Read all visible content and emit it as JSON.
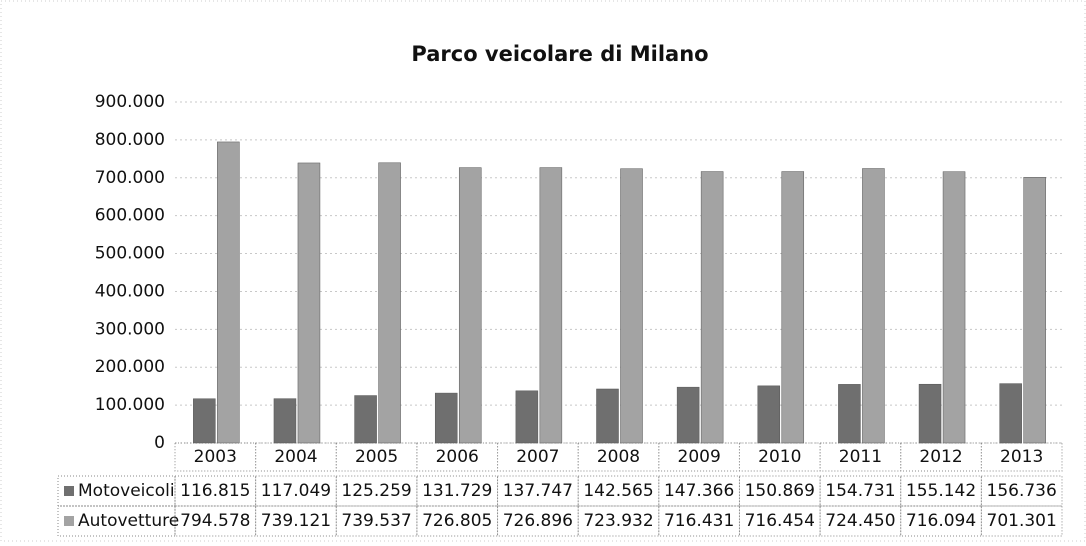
{
  "chart_data": {
    "type": "bar",
    "title": "Parco veicolare di Milano",
    "categories": [
      "2003",
      "2004",
      "2005",
      "2006",
      "2007",
      "2008",
      "2009",
      "2010",
      "2011",
      "2012",
      "2013"
    ],
    "series": [
      {
        "name": "Motoveicoli",
        "color": "#6f6f6f",
        "values": [
          116815,
          117049,
          125259,
          131729,
          137747,
          142565,
          147366,
          150869,
          154731,
          155142,
          156736
        ],
        "value_labels": [
          "116.815",
          "117.049",
          "125.259",
          "131.729",
          "137.747",
          "142.565",
          "147.366",
          "150.869",
          "154.731",
          "155.142",
          "156.736"
        ]
      },
      {
        "name": "Autovetture",
        "color": "#a3a3a3",
        "values": [
          794578,
          739121,
          739537,
          726805,
          726896,
          723932,
          716431,
          716454,
          724450,
          716094,
          701301
        ],
        "value_labels": [
          "794.578",
          "739.121",
          "739.537",
          "726.805",
          "726.896",
          "723.932",
          "716.431",
          "716.454",
          "724.450",
          "716.094",
          "701.301"
        ]
      }
    ],
    "ylim": [
      0,
      900000
    ],
    "yticks": [
      0,
      {
        "value": 100000,
        "label": "100.000"
      },
      {
        "value": 200000,
        "label": "200.000"
      },
      {
        "value": 300000,
        "label": "300.000"
      },
      {
        "value": 400000,
        "label": "400.000"
      },
      {
        "value": 500000,
        "label": "500.000"
      },
      {
        "value": 600000,
        "label": "600.000"
      },
      {
        "value": 700000,
        "label": "700.000"
      },
      {
        "value": 800000,
        "label": "800.000"
      },
      {
        "value": 900000,
        "label": "900.000"
      }
    ],
    "grid": true
  }
}
